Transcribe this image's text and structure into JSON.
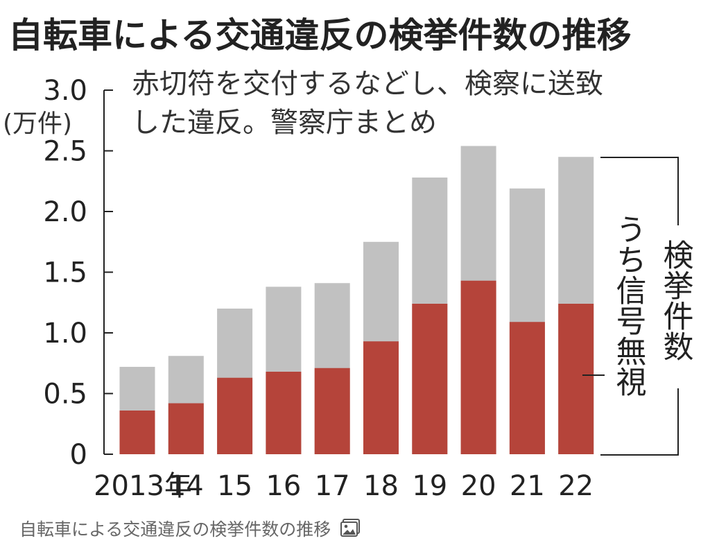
{
  "chart_data": {
    "type": "bar",
    "title": "自転車による交通違反の検挙件数の推移",
    "subtitle": [
      "赤切符を交付するなどし、検察に送致",
      "した違反。警察庁まとめ"
    ],
    "y_unit": "(万件)",
    "categories": [
      "2013年",
      "14",
      "15",
      "16",
      "17",
      "18",
      "19",
      "20",
      "21",
      "22"
    ],
    "ylim": [
      0,
      3.0
    ],
    "y_ticks": [
      "0",
      "0.5",
      "1.0",
      "1.5",
      "2.0",
      "2.5",
      "3.0"
    ],
    "series": [
      {
        "name": "検挙件数",
        "values": [
          0.72,
          0.81,
          1.2,
          1.38,
          1.41,
          1.75,
          2.28,
          2.54,
          2.19,
          2.45
        ],
        "color": "#c1c1c1"
      },
      {
        "name": "うち信号無視",
        "values": [
          0.36,
          0.42,
          0.63,
          0.68,
          0.71,
          0.93,
          1.24,
          1.43,
          1.09,
          1.24
        ],
        "color": "#b5443a"
      }
    ],
    "grid": false,
    "legend": "right"
  },
  "caption": "自転車による交通違反の検挙件数の推移",
  "icons": {
    "caption_icon": "image-icon"
  }
}
